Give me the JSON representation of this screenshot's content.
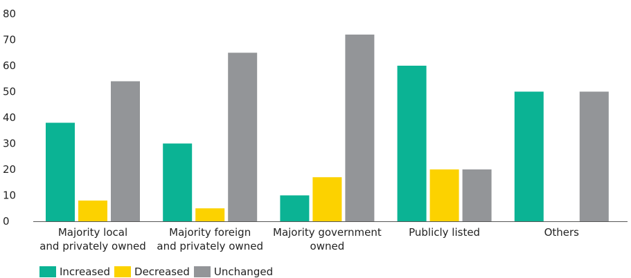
{
  "chart_data": {
    "type": "bar",
    "categories": [
      [
        "Majority local",
        "and privately owned"
      ],
      [
        "Majority foreign",
        "and privately owned"
      ],
      [
        "Majority government",
        "owned"
      ],
      [
        "Publicly listed"
      ],
      [
        "Others"
      ]
    ],
    "series": [
      {
        "name": "Increased",
        "color": "#0bb394",
        "values": [
          38,
          30,
          10,
          60,
          50
        ]
      },
      {
        "name": "Decreased",
        "color": "#fcd200",
        "values": [
          8,
          5,
          17,
          20,
          0
        ]
      },
      {
        "name": "Unchanged",
        "color": "#939598",
        "values": [
          54,
          65,
          72,
          20,
          50
        ]
      }
    ],
    "ylim": [
      0,
      80
    ],
    "yticks": [
      "0",
      "10",
      "20",
      "30",
      "40",
      "50",
      "60",
      "70",
      "80"
    ],
    "grid": false,
    "legend": "bottom-left",
    "title": "",
    "xlabel": "",
    "ylabel": ""
  }
}
